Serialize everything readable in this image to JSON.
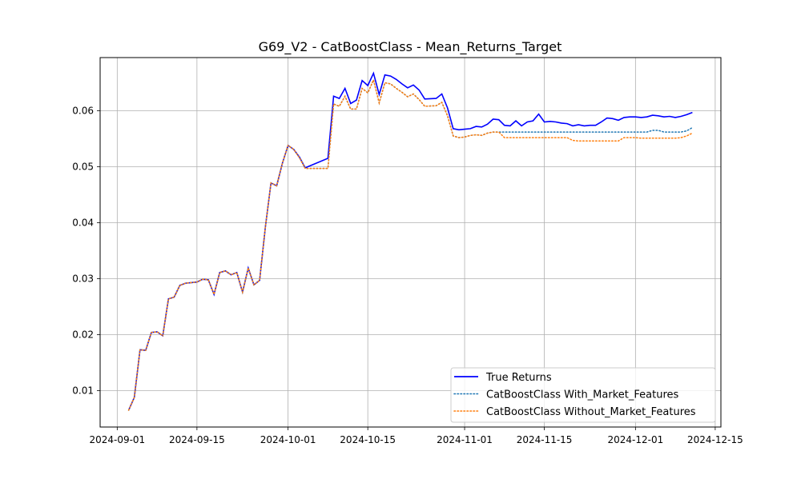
{
  "chart_data": {
    "type": "line",
    "title": "G69_V2 - CatBoostClass - Mean_Returns_Target",
    "xlabel": "",
    "ylabel": "",
    "x_ticks": [
      "2024-09-01",
      "2024-09-15",
      "2024-10-01",
      "2024-10-15",
      "2024-11-01",
      "2024-11-15",
      "2024-12-01",
      "2024-12-15"
    ],
    "y_ticks": [
      0.01,
      0.02,
      0.03,
      0.04,
      0.05,
      0.06
    ],
    "y_tick_labels": [
      "0.01",
      "0.02",
      "0.03",
      "0.04",
      "0.05",
      "0.06"
    ],
    "xlim": [
      "2024-08-29",
      "2024-12-16"
    ],
    "ylim": [
      0.0035,
      0.0695
    ],
    "grid": true,
    "legend_position": "lower-right",
    "x": [
      "2024-09-03",
      "2024-09-04",
      "2024-09-05",
      "2024-09-06",
      "2024-09-07",
      "2024-09-08",
      "2024-09-09",
      "2024-09-10",
      "2024-09-11",
      "2024-09-12",
      "2024-09-13",
      "2024-09-14",
      "2024-09-15",
      "2024-09-16",
      "2024-09-17",
      "2024-09-18",
      "2024-09-19",
      "2024-09-20",
      "2024-09-21",
      "2024-09-22",
      "2024-09-23",
      "2024-09-24",
      "2024-09-25",
      "2024-09-26",
      "2024-09-27",
      "2024-09-28",
      "2024-09-29",
      "2024-09-30",
      "2024-10-01",
      "2024-10-02",
      "2024-10-03",
      "2024-10-04",
      "2024-10-08",
      "2024-10-09",
      "2024-10-10",
      "2024-10-11",
      "2024-10-12",
      "2024-10-13",
      "2024-10-14",
      "2024-10-15",
      "2024-10-16",
      "2024-10-17",
      "2024-10-18",
      "2024-10-19",
      "2024-10-20",
      "2024-10-21",
      "2024-10-22",
      "2024-10-23",
      "2024-10-24",
      "2024-10-25",
      "2024-10-27",
      "2024-10-28",
      "2024-10-29",
      "2024-10-30",
      "2024-10-31",
      "2024-11-01",
      "2024-11-02",
      "2024-11-03",
      "2024-11-04",
      "2024-11-05",
      "2024-11-06",
      "2024-11-07",
      "2024-11-08",
      "2024-11-09",
      "2024-11-10",
      "2024-11-11",
      "2024-11-12",
      "2024-11-13",
      "2024-11-14",
      "2024-11-15",
      "2024-11-16",
      "2024-11-17",
      "2024-11-18",
      "2024-11-19",
      "2024-11-20",
      "2024-11-21",
      "2024-11-22",
      "2024-11-23",
      "2024-11-24",
      "2024-11-25",
      "2024-11-26",
      "2024-11-27",
      "2024-11-28",
      "2024-11-29",
      "2024-11-30",
      "2024-12-01",
      "2024-12-02",
      "2024-12-03",
      "2024-12-04",
      "2024-12-05",
      "2024-12-06",
      "2024-12-07",
      "2024-12-08",
      "2024-12-09",
      "2024-12-10"
    ],
    "series": [
      {
        "name": "True Returns",
        "color": "#0000ff",
        "style": "solid",
        "values": [
          0.0065,
          0.0088,
          0.0173,
          0.0172,
          0.0204,
          0.0205,
          0.0198,
          0.0264,
          0.0267,
          0.0288,
          0.0292,
          0.0293,
          0.0294,
          0.0299,
          0.0298,
          0.0272,
          0.0311,
          0.0314,
          0.0307,
          0.0311,
          0.0276,
          0.0319,
          0.0289,
          0.0297,
          0.0391,
          0.0471,
          0.0466,
          0.0506,
          0.0538,
          0.0531,
          0.0517,
          0.0498,
          0.0515,
          0.0626,
          0.0622,
          0.064,
          0.0613,
          0.0619,
          0.0654,
          0.0645,
          0.0667,
          0.0629,
          0.0664,
          0.0662,
          0.0656,
          0.0648,
          0.0641,
          0.0646,
          0.0637,
          0.0621,
          0.0622,
          0.063,
          0.0605,
          0.0568,
          0.0566,
          0.0567,
          0.0568,
          0.0572,
          0.0571,
          0.0576,
          0.0585,
          0.0584,
          0.0574,
          0.0573,
          0.0582,
          0.0573,
          0.058,
          0.0582,
          0.0594,
          0.058,
          0.0581,
          0.058,
          0.0578,
          0.0577,
          0.0573,
          0.0575,
          0.0573,
          0.0574,
          0.0574,
          0.058,
          0.0587,
          0.0586,
          0.0583,
          0.0588,
          0.0589,
          0.0589,
          0.0588,
          0.0589,
          0.0592,
          0.0591,
          0.0589,
          0.059,
          0.0588,
          0.059,
          0.0593
        ],
        "values_tail": [
          0.0597
        ]
      },
      {
        "name": "CatBoostClass With_Market_Features",
        "color": "#1f77b4",
        "style": "dotted",
        "values": [
          0.0065,
          0.0088,
          0.0173,
          0.0172,
          0.0204,
          0.0205,
          0.0198,
          0.0264,
          0.0267,
          0.0288,
          0.0292,
          0.0293,
          0.0294,
          0.0299,
          0.0298,
          0.0272,
          0.0311,
          0.0314,
          0.0307,
          0.0311,
          0.0276,
          0.0319,
          0.0289,
          0.0297,
          0.0391,
          0.0471,
          0.0466,
          0.0506,
          0.0538,
          0.0531,
          0.0516,
          0.0497,
          0.0497,
          0.0612,
          0.0608,
          0.0626,
          0.0603,
          0.0603,
          0.064,
          0.0632,
          0.0655,
          0.0614,
          0.065,
          0.0648,
          0.064,
          0.0633,
          0.0625,
          0.063,
          0.062,
          0.0608,
          0.0609,
          0.0615,
          0.0591,
          0.0555,
          0.0552,
          0.0553,
          0.0556,
          0.0557,
          0.0556,
          0.056,
          0.0562,
          0.0562,
          0.0562,
          0.0562,
          0.0562,
          0.0562,
          0.0562,
          0.0562,
          0.0562,
          0.0562,
          0.0562,
          0.0562,
          0.0562,
          0.0562,
          0.0562,
          0.0562,
          0.0562,
          0.0562,
          0.0562,
          0.0562,
          0.0562,
          0.0562,
          0.0562,
          0.0562,
          0.0562,
          0.0562,
          0.0562,
          0.0562,
          0.0565,
          0.0565,
          0.0562,
          0.0562,
          0.0562,
          0.0562,
          0.0564
        ],
        "values_tail": [
          0.057
        ]
      },
      {
        "name": "CatBoostClass Without_Market_Features",
        "color": "#ff7f0e",
        "style": "dotted",
        "values": [
          0.0065,
          0.0088,
          0.0173,
          0.0172,
          0.0204,
          0.0205,
          0.0198,
          0.0264,
          0.0267,
          0.0288,
          0.0292,
          0.0293,
          0.0294,
          0.0299,
          0.0298,
          0.0272,
          0.0311,
          0.0314,
          0.0307,
          0.0311,
          0.0276,
          0.0319,
          0.0289,
          0.0297,
          0.0391,
          0.0471,
          0.0466,
          0.0506,
          0.0538,
          0.0531,
          0.0516,
          0.0497,
          0.0497,
          0.0612,
          0.0608,
          0.0626,
          0.0603,
          0.0603,
          0.064,
          0.0632,
          0.0655,
          0.0614,
          0.065,
          0.0648,
          0.064,
          0.0633,
          0.0625,
          0.063,
          0.062,
          0.0608,
          0.0609,
          0.0615,
          0.0591,
          0.0555,
          0.0552,
          0.0553,
          0.0556,
          0.0557,
          0.0556,
          0.056,
          0.0562,
          0.0562,
          0.0552,
          0.0552,
          0.0552,
          0.0552,
          0.0552,
          0.0552,
          0.0552,
          0.0552,
          0.0552,
          0.0552,
          0.0552,
          0.0552,
          0.0547,
          0.0546,
          0.0546,
          0.0546,
          0.0546,
          0.0546,
          0.0546,
          0.0546,
          0.0546,
          0.0552,
          0.0552,
          0.0552,
          0.0551,
          0.0551,
          0.0551,
          0.0551,
          0.0551,
          0.0551,
          0.0551,
          0.0552,
          0.0555
        ],
        "values_tail": [
          0.056
        ]
      }
    ]
  }
}
